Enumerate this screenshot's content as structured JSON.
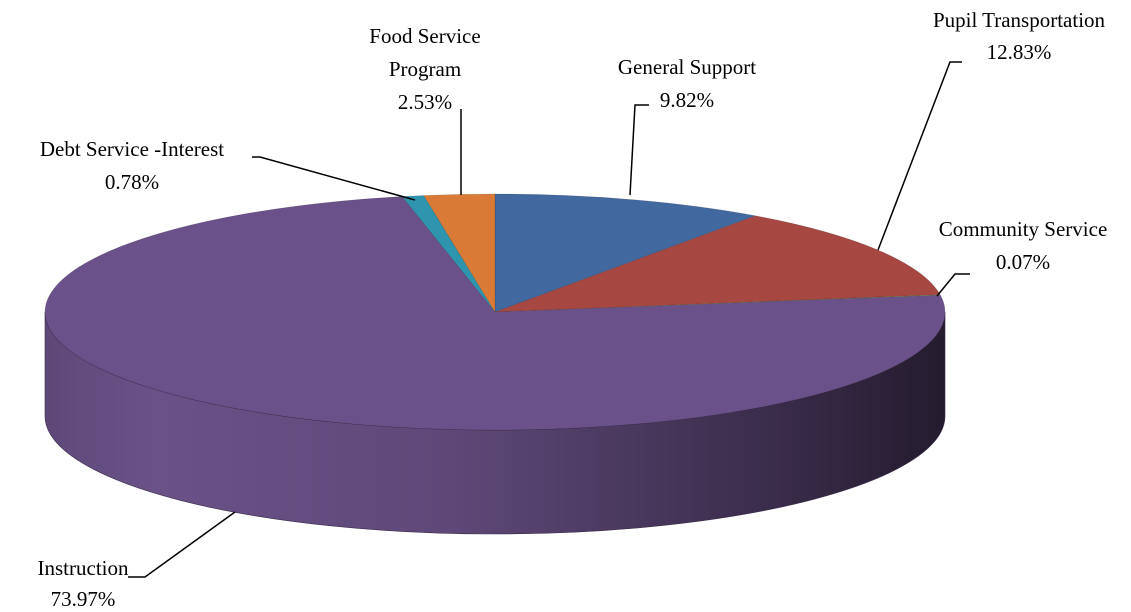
{
  "chart_data": {
    "type": "pie",
    "three_d": true,
    "title": "",
    "legend": "none",
    "slices": [
      {
        "label": "General Support",
        "value": 9.82,
        "display": "9.82%",
        "color": "#4268A0"
      },
      {
        "label": "Pupil Transportation",
        "value": 12.83,
        "display": "12.83%",
        "color": "#A64742"
      },
      {
        "label": "Community Service",
        "value": 0.07,
        "display": "0.07%",
        "color": "#86A44A"
      },
      {
        "label": "Instruction",
        "value": 73.97,
        "display": "73.97%",
        "color": "#6B5189"
      },
      {
        "label": "Debt Service -Interest",
        "value": 0.78,
        "display": "0.78%",
        "color": "#2F95AE"
      },
      {
        "label": "Food Service\nProgram",
        "value": 2.53,
        "display": "2.53%",
        "color": "#D97B36"
      }
    ]
  }
}
